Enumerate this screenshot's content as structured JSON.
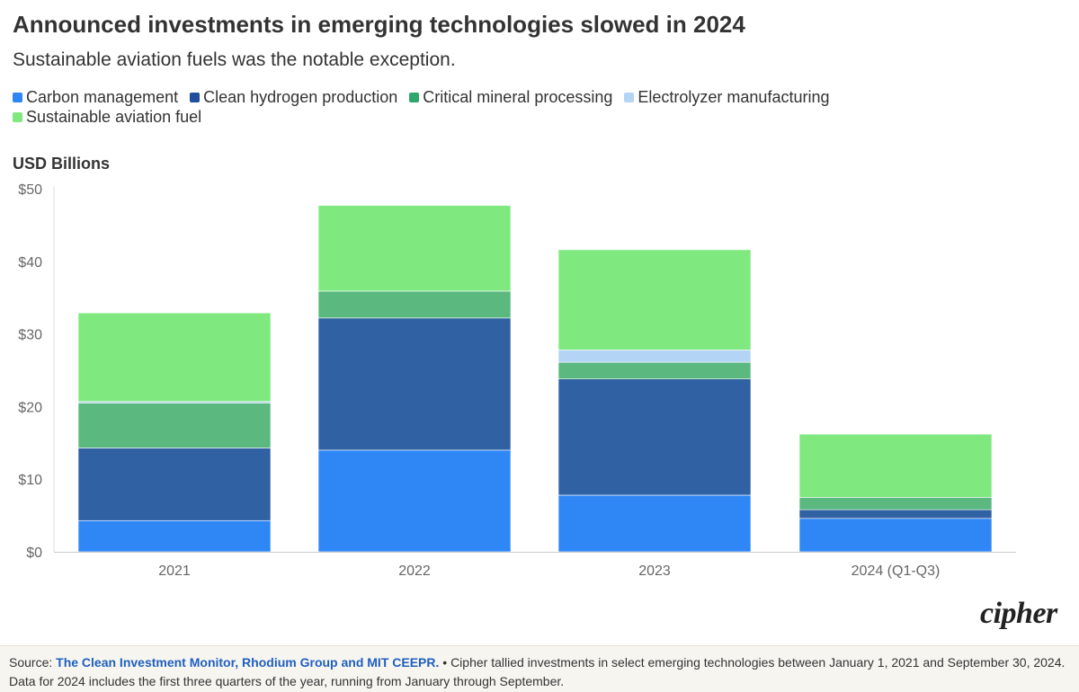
{
  "title": "Announced investments in emerging technologies slowed in 2024",
  "subtitle": "Sustainable aviation fuels was the notable exception.",
  "unit_label": "USD Billions",
  "legend": [
    {
      "label": "Carbon management",
      "color": "#2f87f5"
    },
    {
      "label": "Clean hydrogen production",
      "color": "#1f4f9c"
    },
    {
      "label": "Critical mineral processing",
      "color": "#2fa66a"
    },
    {
      "label": "Electrolyzer manufacturing",
      "color": "#b3d4f5"
    },
    {
      "label": "Sustainable aviation fuel",
      "color": "#7fe97f"
    }
  ],
  "chart_data": {
    "type": "bar",
    "stacked": true,
    "categories": [
      "2021",
      "2022",
      "2023",
      "2024 (Q1-Q3)"
    ],
    "series": [
      {
        "name": "Carbon management",
        "color": "#2f87f5",
        "values": [
          4.3,
          14.0,
          7.8,
          4.6
        ]
      },
      {
        "name": "Clean hydrogen production",
        "color": "#3061a3",
        "values": [
          10.0,
          18.2,
          16.0,
          1.2
        ]
      },
      {
        "name": "Critical mineral processing",
        "color": "#5bb87f",
        "values": [
          6.2,
          3.7,
          2.3,
          1.7
        ]
      },
      {
        "name": "Electrolyzer manufacturing",
        "color": "#b3d4f5",
        "values": [
          0.2,
          0.0,
          1.7,
          0.0
        ]
      },
      {
        "name": "Sustainable aviation fuel",
        "color": "#7fe87f",
        "values": [
          12.2,
          11.8,
          13.8,
          8.7
        ]
      }
    ],
    "y_ticks": [
      "$0",
      "$10",
      "$20",
      "$30",
      "$40",
      "$50"
    ],
    "y_tick_values": [
      0,
      10,
      20,
      30,
      40,
      50
    ],
    "ylim": [
      0,
      50
    ],
    "ylabel": "USD Billions",
    "xlabel": "",
    "grid": false
  },
  "logo_text": "cipher",
  "footer": {
    "source_prefix": "Source: ",
    "source_link": "The Clean Investment Monitor, Rhodium Group and MIT CEEPR.",
    "note": " • Cipher tallied investments in select emerging technologies between January 1, 2021 and September 30, 2024. Data for 2024 includes the first three quarters of the year, running from January through September."
  }
}
